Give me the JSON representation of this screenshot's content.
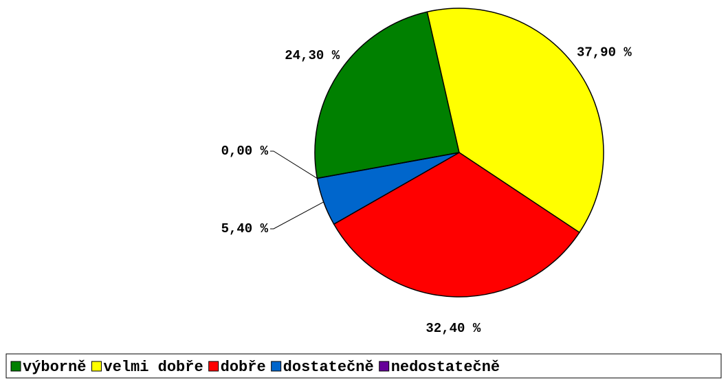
{
  "chart_data": {
    "type": "pie",
    "categories": [
      "výborně",
      "velmi dobře",
      "dobře",
      "dostatečně",
      "nedostatečně"
    ],
    "values": [
      24.3,
      37.9,
      32.4,
      5.4,
      0
    ],
    "value_labels": [
      "24,30 %",
      "37,90 %",
      "32,40 %",
      "5,40 %",
      "0,00 %"
    ],
    "colors": [
      "#008000",
      "#ffff00",
      "#ff0000",
      "#0066cc",
      "#660099"
    ],
    "legend": "bottom"
  }
}
